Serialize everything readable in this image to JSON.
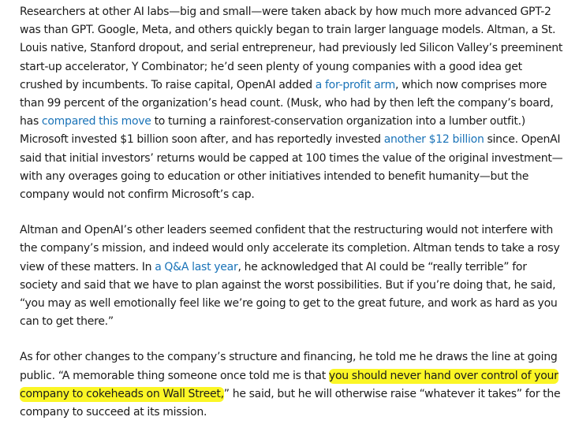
{
  "paragraphs": [
    {
      "segments": [
        {
          "type": "text",
          "text": "Researchers at other AI labs—big and small—were taken aback by how much more advanced GPT-2 was than GPT. Google, Meta, and others quickly began to train larger language models. Altman, a St. Louis native, Stanford dropout, and serial entrepreneur, had previously led Silicon Valley’s preeminent start-up accelerator, Y Combinator; he’d seen plenty of young companies with a good idea get crushed by incumbents. To raise capital, OpenAI added "
        },
        {
          "type": "link",
          "text": "a for-profit arm"
        },
        {
          "type": "text",
          "text": ", which now comprises more than 99 percent of the organization’s head count. (Musk, who had by then left the company’s board, has "
        },
        {
          "type": "link",
          "text": "compared this move"
        },
        {
          "type": "text",
          "text": " to turning a rainforest-conservation organization into a lumber outfit.) Microsoft invested $1 billion soon after, and has reportedly invested "
        },
        {
          "type": "link",
          "text": "another $12 billion"
        },
        {
          "type": "text",
          "text": " since. OpenAI said that initial investors’ returns would be capped at 100 times the value of the original investment—with any overages going to education or other initiatives intended to benefit humanity—but the company would not confirm Microsoft’s cap."
        }
      ]
    },
    {
      "segments": [
        {
          "type": "text",
          "text": "Altman and OpenAI’s other leaders seemed confident that the restructuring would not interfere with the company’s mission, and indeed would only accelerate its completion. Altman tends to take a rosy view of these matters. In "
        },
        {
          "type": "link",
          "text": "a Q&A last year"
        },
        {
          "type": "text",
          "text": ", he acknowledged that AI could be “really terrible” for society and said that we have to plan against the worst possibilities. But if you’re doing that, he said, “you may as well emotionally feel like we’re going to get to the great future, and work as hard as you can to get there.”"
        }
      ]
    },
    {
      "segments": [
        {
          "type": "text",
          "text": "As for other changes to the company’s structure and financing, he told me he draws the line at going public. “A memorable thing someone once told me is that "
        },
        {
          "type": "highlight",
          "text": "you should never hand over control of your company to cokeheads on Wall Street,"
        },
        {
          "type": "text",
          "text": "” he said, but he will otherwise raise “whatever it takes” for the company to succeed at its mission."
        }
      ]
    }
  ],
  "colors": {
    "text": "#1b1b1b",
    "link": "#1a73b8",
    "highlight": "#fbf626"
  }
}
